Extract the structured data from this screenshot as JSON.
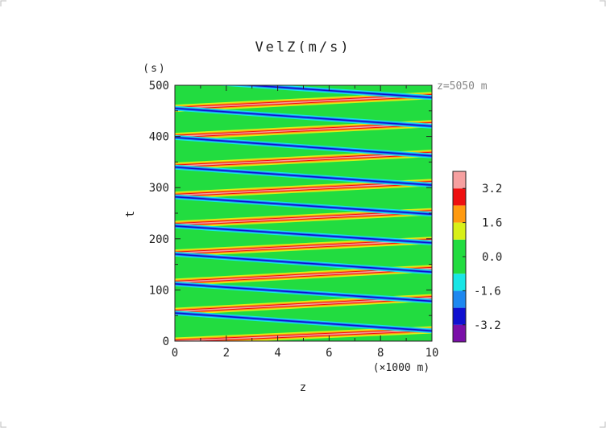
{
  "chart_data": {
    "type": "heatmap",
    "title": "VelZ(m/s)",
    "xlabel": "z",
    "xunit": "(×1000 m)",
    "ylabel": "t",
    "yunit": "(s)",
    "annotation": "z=5050 m",
    "xlim": [
      0,
      10
    ],
    "ylim": [
      0,
      500
    ],
    "xticks": [
      "0",
      "2",
      "4",
      "6",
      "8",
      "10"
    ],
    "yticks": [
      "0",
      "100",
      "200",
      "300",
      "400",
      "500"
    ],
    "colorbar": {
      "tick_labels": [
        "3.2",
        "1.6",
        "0.0",
        "-1.6",
        "-3.2"
      ],
      "tick_values": [
        3.2,
        1.6,
        0.0,
        -1.6,
        -3.2
      ],
      "levels": [
        {
          "min": -4.0,
          "max": -3.2,
          "color": "#7a0fa8"
        },
        {
          "min": -3.2,
          "max": -2.4,
          "color": "#1010d0"
        },
        {
          "min": -2.4,
          "max": -1.6,
          "color": "#1e88f0"
        },
        {
          "min": -1.6,
          "max": -0.8,
          "color": "#18e6e6"
        },
        {
          "min": -0.8,
          "max": 0.8,
          "color": "#22dc40"
        },
        {
          "min": 0.8,
          "max": 1.6,
          "color": "#d8f018"
        },
        {
          "min": 1.6,
          "max": 2.4,
          "color": "#ff9a10"
        },
        {
          "min": 2.4,
          "max": 3.2,
          "color": "#ee1010"
        },
        {
          "min": 3.2,
          "max": 4.0,
          "color": "#f6a0a0"
        }
      ]
    },
    "background_color": "#22dc40",
    "positive_pulses": [
      {
        "x0": 0,
        "t0": 0,
        "x1": 10,
        "t1": 22
      },
      {
        "x0": 0,
        "t0": 58,
        "x1": 10,
        "t1": 85
      },
      {
        "x0": 0,
        "t0": 115,
        "x1": 10,
        "t1": 142
      },
      {
        "x0": 0,
        "t0": 172,
        "x1": 10,
        "t1": 197
      },
      {
        "x0": 0,
        "t0": 228,
        "x1": 10,
        "t1": 253
      },
      {
        "x0": 0,
        "t0": 285,
        "x1": 10,
        "t1": 310
      },
      {
        "x0": 0,
        "t0": 342,
        "x1": 10,
        "t1": 367
      },
      {
        "x0": 0,
        "t0": 400,
        "x1": 10,
        "t1": 425
      },
      {
        "x0": 0,
        "t0": 455,
        "x1": 10,
        "t1": 480
      }
    ],
    "negative_pulses": [
      {
        "x0": 10,
        "t0": 20,
        "x1": 0,
        "t1": 55
      },
      {
        "x0": 10,
        "t0": 78,
        "x1": 0,
        "t1": 112
      },
      {
        "x0": 10,
        "t0": 135,
        "x1": 0,
        "t1": 170
      },
      {
        "x0": 10,
        "t0": 192,
        "x1": 0,
        "t1": 225
      },
      {
        "x0": 10,
        "t0": 248,
        "x1": 0,
        "t1": 282
      },
      {
        "x0": 10,
        "t0": 305,
        "x1": 0,
        "t1": 340
      },
      {
        "x0": 10,
        "t0": 362,
        "x1": 0,
        "t1": 398
      },
      {
        "x0": 10,
        "t0": 420,
        "x1": 0,
        "t1": 455
      },
      {
        "x0": 10,
        "t0": 476,
        "x1": 0,
        "t1": 510
      }
    ]
  }
}
